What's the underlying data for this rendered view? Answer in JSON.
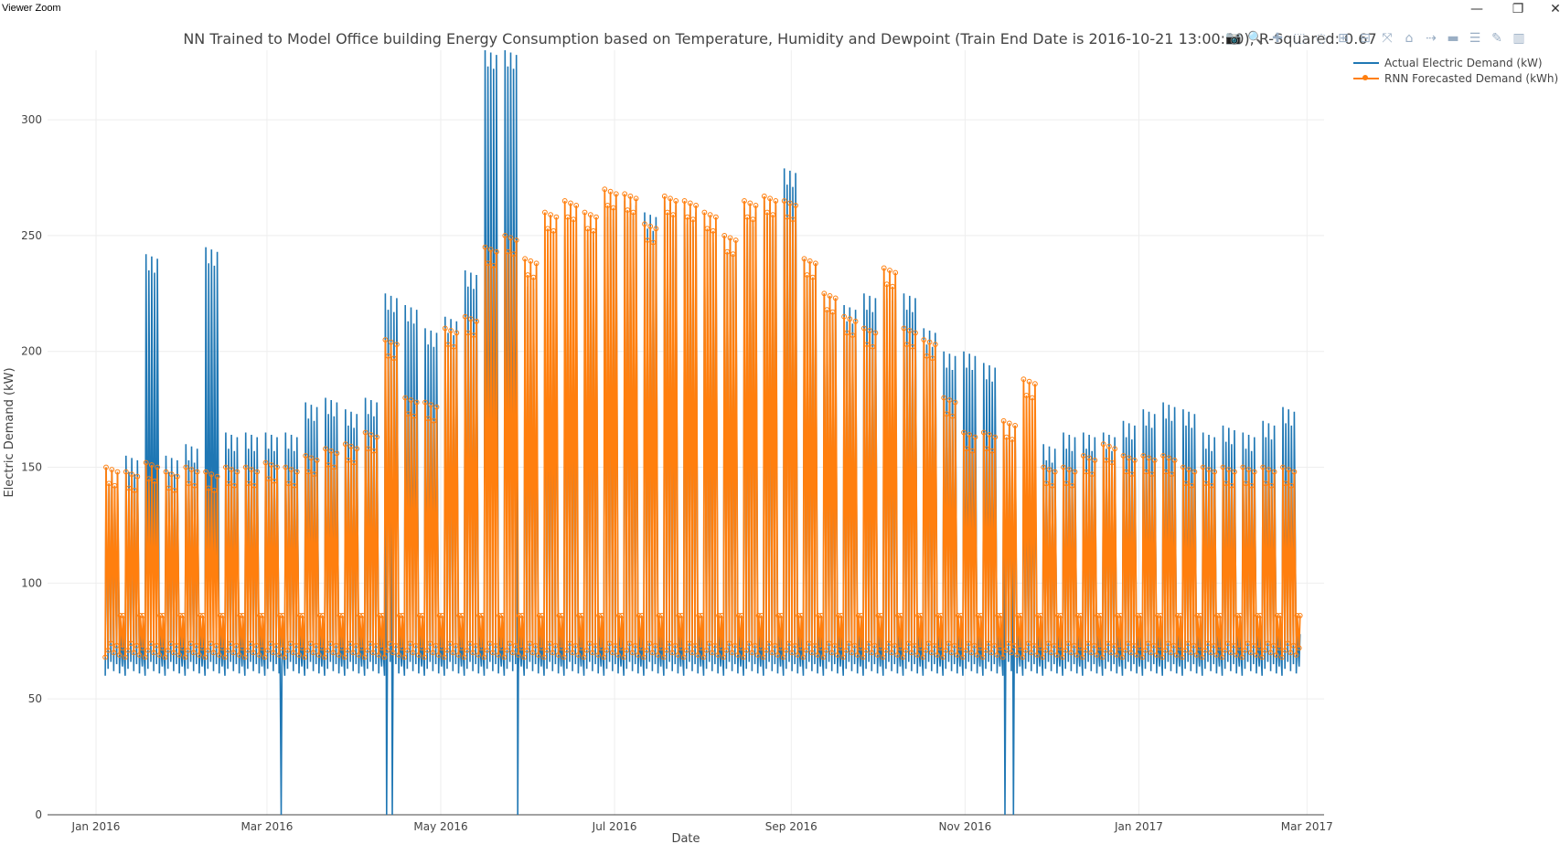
{
  "window": {
    "title": "Viewer Zoom",
    "minimize_glyph": "—",
    "restore_glyph": "❐",
    "close_glyph": "✕"
  },
  "modebar": {
    "icons": [
      "camera-icon",
      "zoom-icon",
      "pan-icon",
      "box-select-icon",
      "lasso-icon",
      "zoom-in-icon",
      "zoom-out-icon",
      "autoscale-icon",
      "reset-axes-icon",
      "spike-lines-icon",
      "hover-closest-icon",
      "hover-compare-icon",
      "edit-icon",
      "plotly-logo-icon"
    ],
    "glyphs": [
      "📷",
      "🔍",
      "✚",
      "⬚",
      "◌",
      "⊞",
      "⊟",
      "⤧",
      "⌂",
      "⇢",
      "▬",
      "☰",
      "✎",
      "▥"
    ]
  },
  "chart_data": {
    "type": "line",
    "title": "NN Trained to Model Office building Energy Consumption based on Temperature, Humidity and Dewpoint (Train End Date is 2016-10-21 13:00:00), R-Squared: 0.67",
    "xlabel": "Date",
    "ylabel": "Electric Demand (kW)",
    "x_range": [
      "2015-12-15",
      "2017-03-07"
    ],
    "ylim": [
      0,
      330
    ],
    "x_ticks": [
      {
        "date": "2016-01-01",
        "label": "Jan 2016"
      },
      {
        "date": "2016-03-01",
        "label": "Mar 2016"
      },
      {
        "date": "2016-05-01",
        "label": "May 2016"
      },
      {
        "date": "2016-07-01",
        "label": "Jul 2016"
      },
      {
        "date": "2016-09-01",
        "label": "Sep 2016"
      },
      {
        "date": "2016-11-01",
        "label": "Nov 2016"
      },
      {
        "date": "2017-01-01",
        "label": "Jan 2017"
      },
      {
        "date": "2017-03-01",
        "label": "Mar 2017"
      }
    ],
    "y_ticks": [
      0,
      50,
      100,
      150,
      200,
      250,
      300
    ],
    "grid": true,
    "legend_position": "top-right",
    "series": [
      {
        "name": "Actual Electric Demand (kW)",
        "color": "#1f77b4",
        "mode": "lines"
      },
      {
        "name": "RNN Forecasted Demand (kWh)",
        "color": "#ff7f0e",
        "mode": "lines+markers"
      }
    ],
    "weekly_peaks": [
      {
        "week_start": "2016-01-04",
        "actual": 150,
        "forecast": 150
      },
      {
        "week_start": "2016-01-11",
        "actual": 155,
        "forecast": 148
      },
      {
        "week_start": "2016-01-18",
        "actual": 242,
        "forecast": 152
      },
      {
        "week_start": "2016-01-25",
        "actual": 155,
        "forecast": 148
      },
      {
        "week_start": "2016-02-01",
        "actual": 160,
        "forecast": 150
      },
      {
        "week_start": "2016-02-08",
        "actual": 245,
        "forecast": 148
      },
      {
        "week_start": "2016-02-15",
        "actual": 165,
        "forecast": 150
      },
      {
        "week_start": "2016-02-22",
        "actual": 165,
        "forecast": 150
      },
      {
        "week_start": "2016-02-29",
        "actual": 165,
        "forecast": 152
      },
      {
        "week_start": "2016-03-07",
        "actual": 165,
        "forecast": 150
      },
      {
        "week_start": "2016-03-14",
        "actual": 178,
        "forecast": 155
      },
      {
        "week_start": "2016-03-21",
        "actual": 180,
        "forecast": 158
      },
      {
        "week_start": "2016-03-28",
        "actual": 175,
        "forecast": 160
      },
      {
        "week_start": "2016-04-04",
        "actual": 180,
        "forecast": 165
      },
      {
        "week_start": "2016-04-11",
        "actual": 225,
        "forecast": 205
      },
      {
        "week_start": "2016-04-18",
        "actual": 220,
        "forecast": 180
      },
      {
        "week_start": "2016-04-25",
        "actual": 210,
        "forecast": 178
      },
      {
        "week_start": "2016-05-02",
        "actual": 215,
        "forecast": 210
      },
      {
        "week_start": "2016-05-09",
        "actual": 235,
        "forecast": 215
      },
      {
        "week_start": "2016-05-16",
        "actual": 330,
        "forecast": 245
      },
      {
        "week_start": "2016-05-23",
        "actual": 330,
        "forecast": 250
      },
      {
        "week_start": "2016-05-30",
        "actual": 235,
        "forecast": 240
      },
      {
        "week_start": "2016-06-06",
        "actual": 240,
        "forecast": 260
      },
      {
        "week_start": "2016-06-13",
        "actual": 250,
        "forecast": 265
      },
      {
        "week_start": "2016-06-20",
        "actual": 255,
        "forecast": 260
      },
      {
        "week_start": "2016-06-27",
        "actual": 265,
        "forecast": 270
      },
      {
        "week_start": "2016-07-04",
        "actual": 265,
        "forecast": 268
      },
      {
        "week_start": "2016-07-11",
        "actual": 260,
        "forecast": 255
      },
      {
        "week_start": "2016-07-18",
        "actual": 265,
        "forecast": 267
      },
      {
        "week_start": "2016-07-25",
        "actual": 262,
        "forecast": 265
      },
      {
        "week_start": "2016-08-01",
        "actual": 255,
        "forecast": 260
      },
      {
        "week_start": "2016-08-08",
        "actual": 250,
        "forecast": 250
      },
      {
        "week_start": "2016-08-15",
        "actual": 262,
        "forecast": 265
      },
      {
        "week_start": "2016-08-22",
        "actual": 265,
        "forecast": 267
      },
      {
        "week_start": "2016-08-29",
        "actual": 279,
        "forecast": 265
      },
      {
        "week_start": "2016-09-05",
        "actual": 240,
        "forecast": 240
      },
      {
        "week_start": "2016-09-12",
        "actual": 225,
        "forecast": 225
      },
      {
        "week_start": "2016-09-19",
        "actual": 220,
        "forecast": 215
      },
      {
        "week_start": "2016-09-26",
        "actual": 225,
        "forecast": 210
      },
      {
        "week_start": "2016-10-03",
        "actual": 230,
        "forecast": 236
      },
      {
        "week_start": "2016-10-10",
        "actual": 225,
        "forecast": 210
      },
      {
        "week_start": "2016-10-17",
        "actual": 210,
        "forecast": 205
      },
      {
        "week_start": "2016-10-24",
        "actual": 200,
        "forecast": 180
      },
      {
        "week_start": "2016-10-31",
        "actual": 200,
        "forecast": 165
      },
      {
        "week_start": "2016-11-07",
        "actual": 195,
        "forecast": 165
      },
      {
        "week_start": "2016-11-14",
        "actual": 170,
        "forecast": 170
      },
      {
        "week_start": "2016-11-21",
        "actual": 170,
        "forecast": 188
      },
      {
        "week_start": "2016-11-28",
        "actual": 160,
        "forecast": 150
      },
      {
        "week_start": "2016-12-05",
        "actual": 165,
        "forecast": 150
      },
      {
        "week_start": "2016-12-12",
        "actual": 165,
        "forecast": 155
      },
      {
        "week_start": "2016-12-19",
        "actual": 165,
        "forecast": 160
      },
      {
        "week_start": "2016-12-26",
        "actual": 170,
        "forecast": 155
      },
      {
        "week_start": "2017-01-02",
        "actual": 175,
        "forecast": 155
      },
      {
        "week_start": "2017-01-09",
        "actual": 178,
        "forecast": 155
      },
      {
        "week_start": "2017-01-16",
        "actual": 175,
        "forecast": 150
      },
      {
        "week_start": "2017-01-23",
        "actual": 165,
        "forecast": 150
      },
      {
        "week_start": "2017-01-30",
        "actual": 168,
        "forecast": 150
      },
      {
        "week_start": "2017-02-06",
        "actual": 165,
        "forecast": 150
      },
      {
        "week_start": "2017-02-13",
        "actual": 170,
        "forecast": 150
      },
      {
        "week_start": "2017-02-20",
        "actual": 176,
        "forecast": 150
      }
    ],
    "weekly_troughs": {
      "actual": 60,
      "forecast": 68
    },
    "actual_outage_dips": [
      {
        "date": "2016-03-06",
        "value": 0
      },
      {
        "date": "2016-04-12",
        "value": 0
      },
      {
        "date": "2016-04-14",
        "value": 0
      },
      {
        "date": "2016-05-28",
        "value": 0
      },
      {
        "date": "2016-11-15",
        "value": 0
      },
      {
        "date": "2016-11-18",
        "value": 0
      }
    ]
  }
}
